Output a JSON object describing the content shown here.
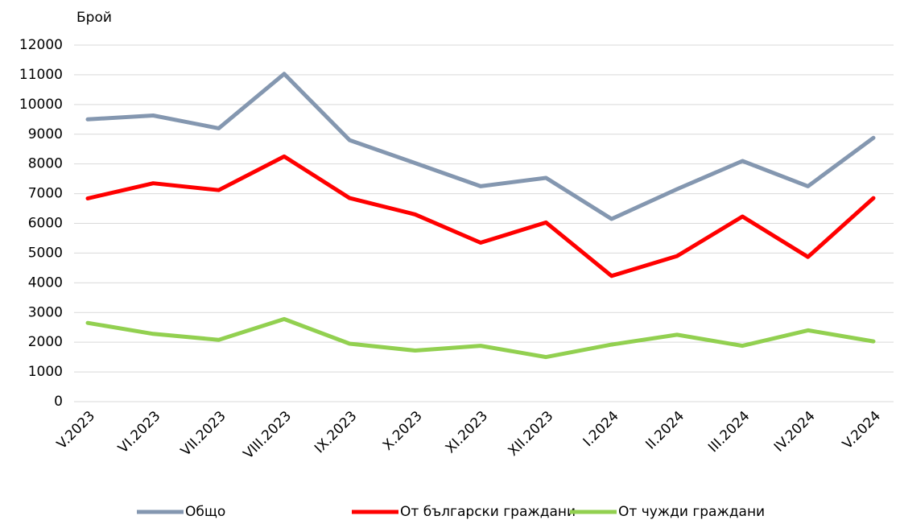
{
  "chart_data": {
    "type": "line",
    "y_label": "Брой",
    "categories": [
      "V.2023",
      "VI.2023",
      "VII.2023",
      "VIII.2023",
      "IX.2023",
      "X.2023",
      "XI.2023",
      "XII.2023",
      "I.2024",
      "II.2024",
      "III.2024",
      "IV.2024",
      "V.2024"
    ],
    "series": [
      {
        "name": "Общо",
        "color": "#8497b0",
        "values": [
          9500,
          9630,
          9200,
          11030,
          8800,
          8030,
          7250,
          7530,
          6150,
          7150,
          8100,
          7250,
          8880
        ]
      },
      {
        "name": "От български граждани",
        "color": "#ff0000",
        "values": [
          6840,
          7350,
          7120,
          8250,
          6850,
          6300,
          5350,
          6030,
          4230,
          4900,
          6230,
          4870,
          6850
        ]
      },
      {
        "name": "От чужди граждани",
        "color": "#92d050",
        "values": [
          2650,
          2280,
          2080,
          2780,
          1950,
          1720,
          1880,
          1500,
          1920,
          2250,
          1880,
          2400,
          2030
        ]
      }
    ],
    "ylim": [
      0,
      12000
    ],
    "yticks": [
      0,
      1000,
      2000,
      3000,
      4000,
      5000,
      6000,
      7000,
      8000,
      9000,
      10000,
      11000,
      12000
    ],
    "grid": true,
    "legend": "bottom"
  }
}
